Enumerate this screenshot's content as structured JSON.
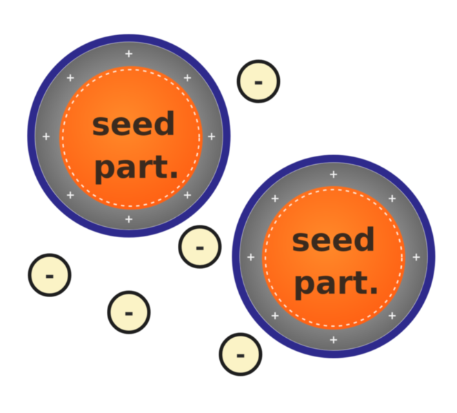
{
  "seed_particles": [
    {
      "label_line1": "seed",
      "label_line2": "part.",
      "surface_charge": "+"
    },
    {
      "label_line1": "seed",
      "label_line2": "part.",
      "surface_charge": "+"
    }
  ],
  "ions": [
    {
      "sign": "-"
    },
    {
      "sign": "-"
    },
    {
      "sign": "-"
    },
    {
      "sign": "-"
    },
    {
      "sign": "-"
    }
  ],
  "colors": {
    "particle_core": "#ff6a1a",
    "particle_core_highlight": "#ff8c2a",
    "shell_gray": "#7d7d7d",
    "outer_ring": "#2e2a8c",
    "ion_fill": "#fbf3c6",
    "ion_outline": "#1e1e1e",
    "dotted_border": "#ffe6d6"
  },
  "icons": {
    "particle": "seed-particle-icon",
    "ion": "negative-ion-icon"
  }
}
